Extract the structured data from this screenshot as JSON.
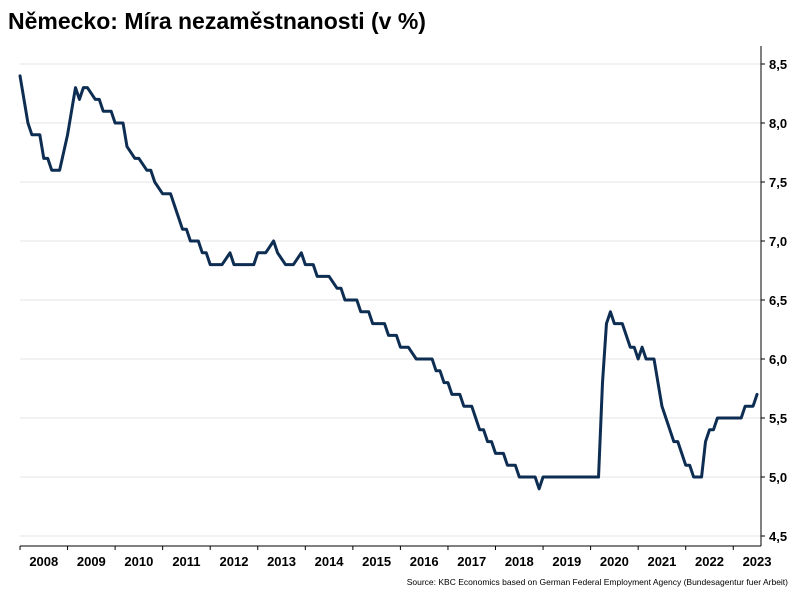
{
  "title": "Německo: Míra nezaměstnanosti (v %)",
  "source": "Source: KBC Economics based on German Federal Employment Agency (Bundesagentur fuer Arbeit)",
  "colors": {
    "line": "#0e2d52",
    "grid": "#e6e6e6",
    "axis": "#000000"
  },
  "chart_data": {
    "type": "line",
    "title": "Německo: Míra nezaměstnanosti (v %)",
    "xlabel": "",
    "ylabel": "",
    "ylim": [
      4.5,
      8.5
    ],
    "y_ticks": [
      "4,5",
      "5,0",
      "5,5",
      "6,0",
      "6,5",
      "7,0",
      "7,5",
      "8,0",
      "8,5"
    ],
    "x_ticks": [
      "2008",
      "2009",
      "2010",
      "2011",
      "2012",
      "2013",
      "2014",
      "2015",
      "2016",
      "2017",
      "2018",
      "2019",
      "2020",
      "2021",
      "2022",
      "2023"
    ],
    "x_range": [
      "2008-01",
      "2023-08"
    ],
    "grid": true,
    "y_axis_position": "right",
    "series": [
      {
        "x": [
          "2008-01",
          "2008-03",
          "2008-04",
          "2008-06",
          "2008-07",
          "2008-08",
          "2008-09",
          "2008-10",
          "2008-11",
          "2009-01",
          "2009-02",
          "2009-03",
          "2009-04",
          "2009-05",
          "2009-06",
          "2009-08",
          "2009-09",
          "2009-10",
          "2009-11",
          "2009-12",
          "2010-01",
          "2010-02",
          "2010-03",
          "2010-04",
          "2010-06",
          "2010-07",
          "2010-09",
          "2010-10",
          "2010-11",
          "2011-01",
          "2011-03",
          "2011-04",
          "2011-05",
          "2011-06",
          "2011-07",
          "2011-08",
          "2011-10",
          "2011-11",
          "2011-12",
          "2012-01",
          "2012-02",
          "2012-04",
          "2012-06",
          "2012-07",
          "2012-08",
          "2012-09",
          "2012-10",
          "2012-12",
          "2013-01",
          "2013-03",
          "2013-05",
          "2013-06",
          "2013-08",
          "2013-09",
          "2013-10",
          "2013-12",
          "2014-01",
          "2014-02",
          "2014-03",
          "2014-04",
          "2014-05",
          "2014-06",
          "2014-07",
          "2014-09",
          "2014-10",
          "2014-11",
          "2014-12",
          "2015-01",
          "2015-02",
          "2015-03",
          "2015-04",
          "2015-05",
          "2015-06",
          "2015-07",
          "2015-09",
          "2015-10",
          "2015-11",
          "2015-12",
          "2016-01",
          "2016-02",
          "2016-03",
          "2016-05",
          "2016-06",
          "2016-07",
          "2016-08",
          "2016-09",
          "2016-10",
          "2016-11",
          "2016-12",
          "2017-01",
          "2017-02",
          "2017-03",
          "2017-04",
          "2017-05",
          "2017-06",
          "2017-07",
          "2017-08",
          "2017-09",
          "2017-10",
          "2017-11",
          "2017-12",
          "2018-01",
          "2018-02",
          "2018-03",
          "2018-04",
          "2018-05",
          "2018-06",
          "2018-07",
          "2018-08",
          "2018-09",
          "2018-10",
          "2018-11",
          "2018-12",
          "2019-01",
          "2019-02",
          "2019-03",
          "2019-04",
          "2019-05",
          "2019-06",
          "2019-07",
          "2019-08",
          "2019-09",
          "2019-10",
          "2019-11",
          "2019-12",
          "2020-01",
          "2020-02",
          "2020-03",
          "2020-04",
          "2020-05",
          "2020-06",
          "2020-07",
          "2020-08",
          "2020-09",
          "2020-10",
          "2020-11",
          "2020-12",
          "2021-01",
          "2021-02",
          "2021-03",
          "2021-04",
          "2021-05",
          "2021-06",
          "2021-07",
          "2021-08",
          "2021-09",
          "2021-10",
          "2021-11",
          "2021-12",
          "2022-01",
          "2022-02",
          "2022-03",
          "2022-04",
          "2022-05",
          "2022-06",
          "2022-07",
          "2022-08",
          "2022-09",
          "2022-10",
          "2022-11",
          "2022-12",
          "2023-01",
          "2023-02",
          "2023-03",
          "2023-04",
          "2023-05",
          "2023-06",
          "2023-07"
        ],
        "y": [
          8.4,
          8.0,
          7.9,
          7.9,
          7.7,
          7.7,
          7.6,
          7.6,
          7.6,
          7.9,
          8.1,
          8.3,
          8.2,
          8.3,
          8.3,
          8.2,
          8.2,
          8.1,
          8.1,
          8.1,
          8.0,
          8.0,
          8.0,
          7.8,
          7.7,
          7.7,
          7.6,
          7.6,
          7.5,
          7.4,
          7.4,
          7.3,
          7.2,
          7.1,
          7.1,
          7.0,
          7.0,
          6.9,
          6.9,
          6.8,
          6.8,
          6.8,
          6.9,
          6.8,
          6.8,
          6.8,
          6.8,
          6.8,
          6.9,
          6.9,
          7.0,
          6.9,
          6.8,
          6.8,
          6.8,
          6.9,
          6.8,
          6.8,
          6.8,
          6.7,
          6.7,
          6.7,
          6.7,
          6.6,
          6.6,
          6.5,
          6.5,
          6.5,
          6.5,
          6.4,
          6.4,
          6.4,
          6.3,
          6.3,
          6.3,
          6.2,
          6.2,
          6.2,
          6.1,
          6.1,
          6.1,
          6.0,
          6.0,
          6.0,
          6.0,
          6.0,
          5.9,
          5.9,
          5.8,
          5.8,
          5.7,
          5.7,
          5.7,
          5.6,
          5.6,
          5.6,
          5.5,
          5.4,
          5.4,
          5.3,
          5.3,
          5.2,
          5.2,
          5.2,
          5.1,
          5.1,
          5.1,
          5.0,
          5.0,
          5.0,
          5.0,
          5.0,
          4.9,
          5.0,
          5.0,
          5.0,
          5.0,
          5.0,
          5.0,
          5.0,
          5.0,
          5.0,
          5.0,
          5.0,
          5.0,
          5.0,
          5.0,
          5.0,
          5.8,
          6.3,
          6.4,
          6.3,
          6.3,
          6.3,
          6.2,
          6.1,
          6.1,
          6.0,
          6.1,
          6.0,
          6.0,
          6.0,
          5.8,
          5.6,
          5.5,
          5.4,
          5.3,
          5.3,
          5.2,
          5.1,
          5.1,
          5.0,
          5.0,
          5.0,
          5.3,
          5.4,
          5.4,
          5.5,
          5.5,
          5.5,
          5.5,
          5.5,
          5.5,
          5.5,
          5.6,
          5.6,
          5.6,
          5.7
        ]
      }
    ]
  }
}
